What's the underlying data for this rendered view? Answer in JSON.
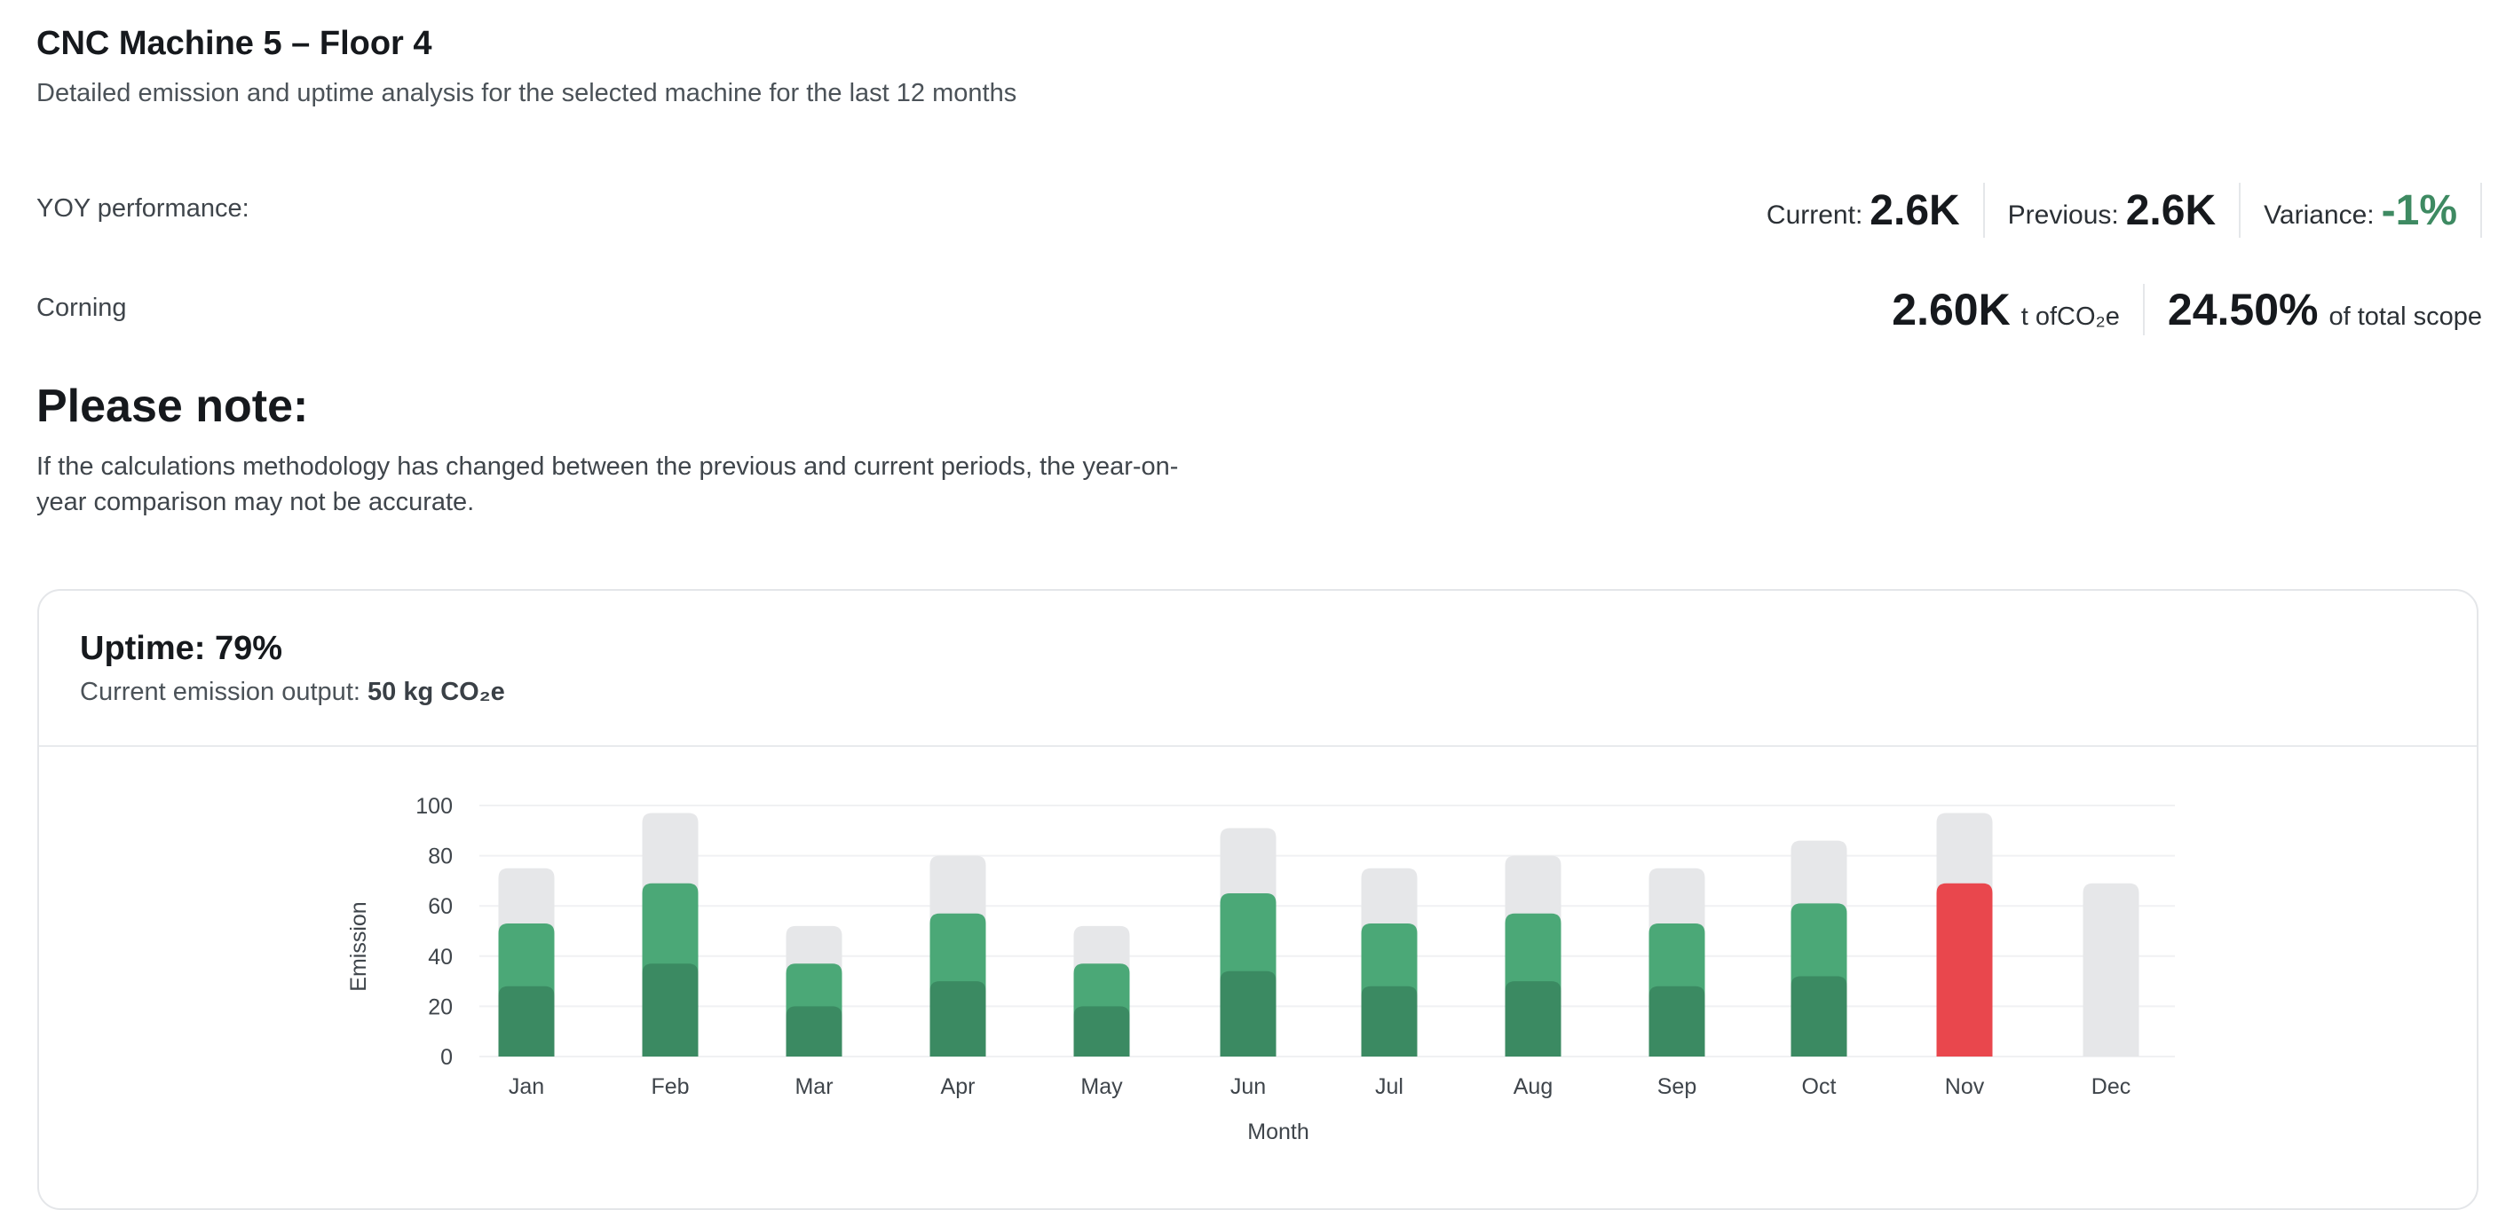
{
  "header": {
    "title": "CNC Machine 5 – Floor 4",
    "subtitle": "Detailed emission and uptime analysis for the selected machine for the last 12 months"
  },
  "yoy": {
    "label": "YOY performance:",
    "current_label": "Current:",
    "current_value": "2.6K",
    "previous_label": "Previous:",
    "previous_value": "2.6K",
    "variance_label": "Variance:",
    "variance_value": "-1%",
    "variance_color": "#3e8a62"
  },
  "corning": {
    "label": "Corning",
    "total_value": "2.60K",
    "total_unit": "t ofCO₂e",
    "share_value": "24.50%",
    "share_unit": "of total scope"
  },
  "note": {
    "title": "Please note:",
    "text": "If the calculations methodology has changed between the previous and current periods, the year-on-year comparison may not be accurate."
  },
  "card": {
    "uptime": "Uptime: 79%",
    "emission_label": "Current emission output:",
    "emission_value": "50 kg CO₂e"
  },
  "chart_data": {
    "type": "bar",
    "xlabel": "Month",
    "ylabel": "Emission",
    "ylim": [
      0,
      100
    ],
    "yticks": [
      0,
      20,
      40,
      60,
      80,
      100
    ],
    "grid": true,
    "categories": [
      "Jan",
      "Feb",
      "Mar",
      "Apr",
      "May",
      "Jun",
      "Jul",
      "Aug",
      "Sep",
      "Oct",
      "Nov",
      "Dec"
    ],
    "series": [
      {
        "key": "total",
        "values": [
          75,
          97,
          52,
          80,
          52,
          91,
          75,
          80,
          75,
          86,
          97,
          69
        ],
        "color": "#e6e7e9"
      },
      {
        "key": "uptime",
        "values": [
          53,
          69,
          37,
          57,
          37,
          65,
          53,
          57,
          53,
          61,
          69,
          0
        ],
        "color": "#4ba877",
        "highlight_color": "#e9474d",
        "highlight_index": 10
      },
      {
        "key": "base",
        "values": [
          28,
          37,
          20,
          30,
          20,
          34,
          28,
          30,
          28,
          32,
          0,
          0
        ],
        "color": "#3b8a62"
      }
    ],
    "colors": {
      "grid": "#f0f1f3",
      "tick_text": "#3f454b"
    }
  }
}
